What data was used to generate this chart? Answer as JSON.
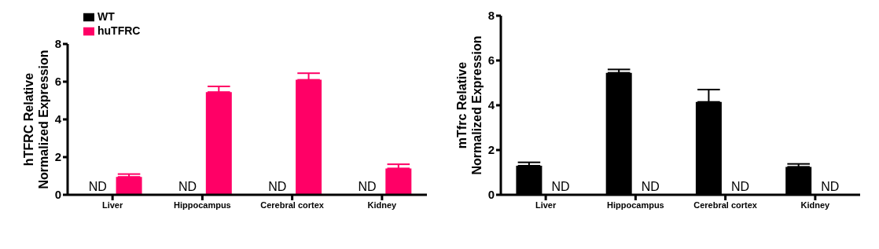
{
  "chart_data": [
    {
      "type": "bar",
      "ylabel": "hTFRC Relative\nNormalized Expression",
      "categories": [
        "Liver",
        "Hippocampus",
        "Cerebral cortex",
        "Kidney"
      ],
      "series": [
        {
          "name": "WT",
          "color": "#000000",
          "values": [
            null,
            null,
            null,
            null
          ],
          "value_labels": [
            "ND",
            "ND",
            "ND",
            "ND"
          ]
        },
        {
          "name": "huTFRC",
          "color": "#ff0066",
          "values": [
            0.95,
            5.45,
            6.1,
            1.4
          ],
          "errors": [
            [
              0.95,
              1.1
            ],
            [
              5.45,
              5.75
            ],
            [
              6.1,
              6.45
            ],
            [
              1.4,
              1.62
            ]
          ]
        }
      ],
      "ylim": [
        0,
        8
      ],
      "yticks": [
        0,
        2,
        4,
        6,
        8
      ],
      "grid": false,
      "legend": "top left"
    },
    {
      "type": "bar",
      "ylabel": "mTfrc Relative\nNormalized Expression",
      "categories": [
        "Liver",
        "Hippocampus",
        "Cerebral cortex",
        "Kidney"
      ],
      "series": [
        {
          "color": "#000000",
          "values": [
            1.3,
            5.45,
            4.15,
            1.25
          ],
          "errors": [
            [
              1.3,
              1.45
            ],
            [
              5.45,
              5.6
            ],
            [
              4.15,
              4.7
            ],
            [
              1.25,
              1.38
            ]
          ]
        },
        {
          "color": "#ff0066",
          "values": [
            null,
            null,
            null,
            null
          ],
          "value_labels": [
            "ND",
            "ND",
            "ND",
            "ND"
          ]
        }
      ],
      "ylim": [
        0,
        8
      ],
      "yticks": [
        0,
        2,
        4,
        6,
        8
      ],
      "grid": false,
      "legend": false
    }
  ]
}
